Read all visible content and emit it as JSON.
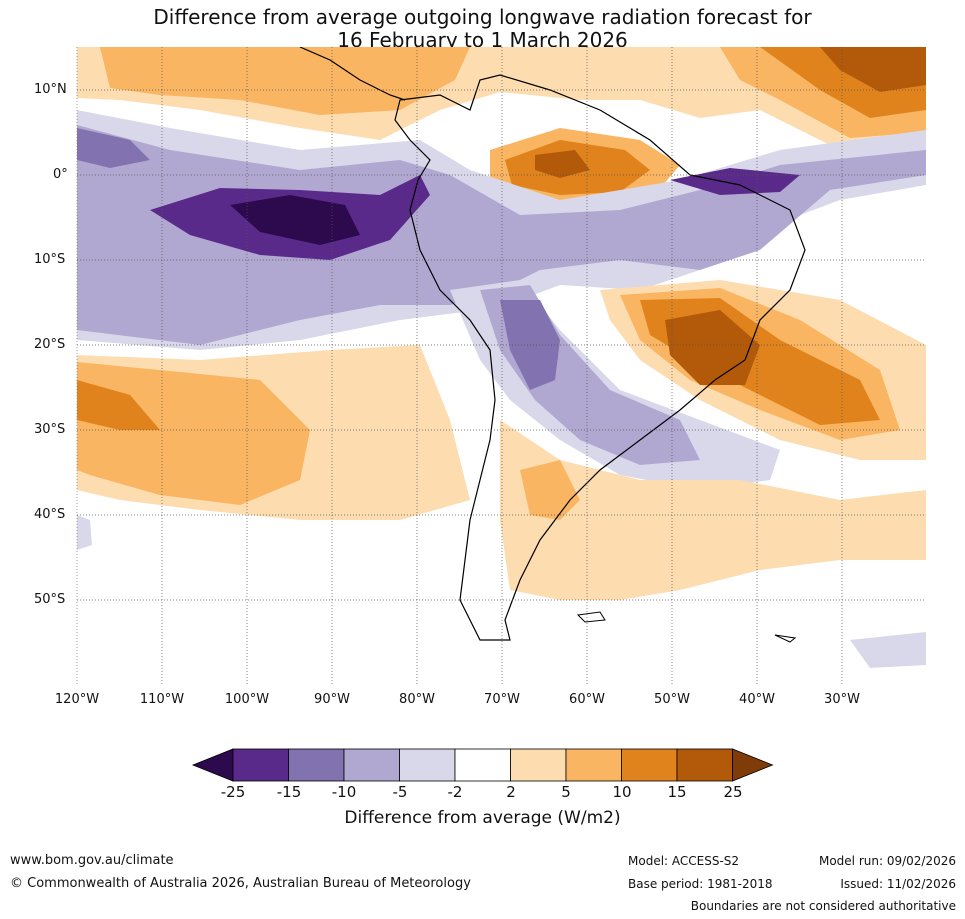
{
  "title_line1": "Difference from average outgoing longwave radiation forecast for",
  "title_line2": "16 February to 1 March 2026",
  "lat_labels": [
    "10°N",
    "0°",
    "10°S",
    "20°S",
    "30°S",
    "40°S",
    "50°S"
  ],
  "lon_labels": [
    "120°W",
    "110°W",
    "100°W",
    "90°W",
    "80°W",
    "70°W",
    "60°W",
    "50°W",
    "40°W",
    "30°W"
  ],
  "colorbar": {
    "ticks": [
      "-25",
      "-15",
      "-10",
      "-5",
      "-2",
      "2",
      "5",
      "10",
      "15",
      "25"
    ],
    "colors": [
      "#2d0a4e",
      "#5a2a8a",
      "#8272b0",
      "#b1a8d2",
      "#d8d8ea",
      "#ffffff",
      "#fddcb0",
      "#f9b562",
      "#e0831c",
      "#b35a0a",
      "#7f3b08"
    ],
    "title": "Difference from average (W/m2)"
  },
  "footer": {
    "site": "www.bom.gov.au/climate",
    "copyright": "© Commonwealth of Australia 2026, Australian Bureau of Meteorology",
    "model": "Model: ACCESS-S2",
    "base_period": "Base period: 1981-2018",
    "model_run": "Model run: 09/02/2026",
    "issued": "Issued: 11/02/2026",
    "disclaimer": "Boundaries are not considered authoritative"
  }
}
